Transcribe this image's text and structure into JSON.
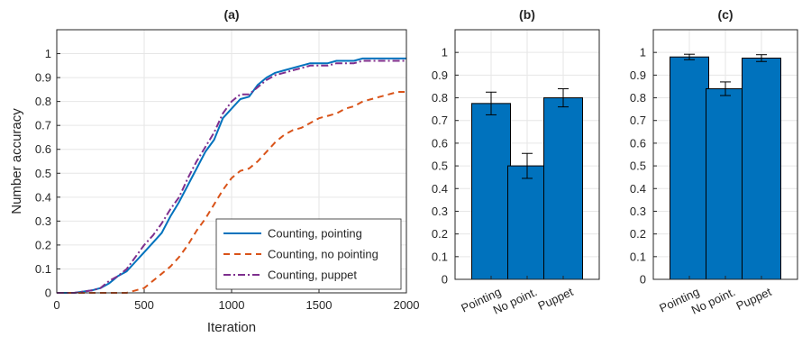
{
  "colors": {
    "pointing": "#0072BD",
    "no_pointing": "#D95319",
    "puppet": "#7E2F8E",
    "bar_fill": "#0072BD",
    "grid": "#e6e6e6",
    "axis": "#262626"
  },
  "chart_data": [
    {
      "id": "a",
      "type": "line",
      "title": "(a)",
      "xlabel": "Iteration",
      "ylabel": "Number accuracy",
      "xlim": [
        0,
        2000
      ],
      "ylim": [
        0,
        1.1
      ],
      "xticks": [
        0,
        500,
        1000,
        1500,
        2000
      ],
      "yticks": [
        0,
        0.1,
        0.2,
        0.3,
        0.4,
        0.5,
        0.6,
        0.7,
        0.8,
        0.9,
        1
      ],
      "ytick_labels": [
        "0",
        "0.1",
        "0.2",
        "0.3",
        "0.4",
        "0.5",
        "0.6",
        "0.7",
        "0.8",
        "0.9",
        "1"
      ],
      "grid": true,
      "legend_position": "bottom-right",
      "series": [
        {
          "name": "Counting, pointing",
          "style": "solid",
          "color": "#0072BD",
          "x": [
            0,
            100,
            200,
            250,
            300,
            350,
            400,
            450,
            500,
            550,
            600,
            650,
            700,
            750,
            800,
            850,
            900,
            950,
            1000,
            1050,
            1100,
            1150,
            1200,
            1250,
            1300,
            1350,
            1400,
            1450,
            1500,
            1550,
            1600,
            1650,
            1700,
            1750,
            1800,
            1850,
            1900,
            1950,
            2000
          ],
          "y": [
            0.0,
            0.0,
            0.01,
            0.02,
            0.04,
            0.07,
            0.09,
            0.13,
            0.17,
            0.21,
            0.25,
            0.32,
            0.38,
            0.45,
            0.52,
            0.59,
            0.64,
            0.73,
            0.77,
            0.81,
            0.82,
            0.87,
            0.9,
            0.92,
            0.93,
            0.94,
            0.95,
            0.96,
            0.96,
            0.96,
            0.97,
            0.97,
            0.97,
            0.98,
            0.98,
            0.98,
            0.98,
            0.98,
            0.98
          ]
        },
        {
          "name": "Counting, no pointing",
          "style": "dashed",
          "color": "#D95319",
          "x": [
            0,
            100,
            200,
            300,
            350,
            400,
            450,
            500,
            550,
            600,
            650,
            700,
            750,
            800,
            850,
            900,
            950,
            1000,
            1050,
            1100,
            1150,
            1200,
            1250,
            1300,
            1350,
            1400,
            1450,
            1500,
            1550,
            1600,
            1650,
            1700,
            1750,
            1800,
            1850,
            1900,
            1950,
            2000
          ],
          "y": [
            0.0,
            0.0,
            0.0,
            0.0,
            0.0,
            0.0,
            0.01,
            0.02,
            0.05,
            0.08,
            0.11,
            0.15,
            0.2,
            0.26,
            0.31,
            0.37,
            0.43,
            0.48,
            0.51,
            0.52,
            0.55,
            0.59,
            0.63,
            0.66,
            0.68,
            0.69,
            0.71,
            0.73,
            0.74,
            0.75,
            0.77,
            0.78,
            0.8,
            0.81,
            0.82,
            0.83,
            0.84,
            0.84
          ]
        },
        {
          "name": "Counting, puppet",
          "style": "dashdot",
          "color": "#7E2F8E",
          "x": [
            0,
            100,
            200,
            250,
            300,
            350,
            400,
            450,
            500,
            550,
            600,
            650,
            700,
            750,
            800,
            850,
            900,
            950,
            1000,
            1050,
            1100,
            1150,
            1200,
            1250,
            1300,
            1350,
            1400,
            1450,
            1500,
            1550,
            1600,
            1650,
            1700,
            1750,
            1800,
            1850,
            1900,
            1950,
            2000
          ],
          "y": [
            0.0,
            0.0,
            0.01,
            0.02,
            0.05,
            0.07,
            0.1,
            0.15,
            0.2,
            0.24,
            0.29,
            0.35,
            0.4,
            0.48,
            0.55,
            0.61,
            0.67,
            0.75,
            0.8,
            0.83,
            0.83,
            0.86,
            0.89,
            0.91,
            0.92,
            0.93,
            0.94,
            0.95,
            0.95,
            0.95,
            0.96,
            0.96,
            0.96,
            0.97,
            0.97,
            0.97,
            0.97,
            0.97,
            0.97
          ]
        }
      ]
    },
    {
      "id": "b",
      "type": "bar",
      "title": "(b)",
      "categories": [
        "Pointing",
        "No point.",
        "Puppet"
      ],
      "values": [
        0.775,
        0.5,
        0.8
      ],
      "errors": [
        0.05,
        0.055,
        0.04
      ],
      "ylim": [
        0,
        1.1
      ],
      "yticks": [
        0,
        0.1,
        0.2,
        0.3,
        0.4,
        0.5,
        0.6,
        0.7,
        0.8,
        0.9,
        1
      ],
      "ytick_labels": [
        "0",
        "0.1",
        "0.2",
        "0.3",
        "0.4",
        "0.5",
        "0.6",
        "0.7",
        "0.8",
        "0.9",
        "1"
      ],
      "grid": true
    },
    {
      "id": "c",
      "type": "bar",
      "title": "(c)",
      "categories": [
        "Pointing",
        "No point.",
        "Puppet"
      ],
      "values": [
        0.98,
        0.84,
        0.975
      ],
      "errors": [
        0.012,
        0.03,
        0.015
      ],
      "ylim": [
        0,
        1.1
      ],
      "yticks": [
        0,
        0.1,
        0.2,
        0.3,
        0.4,
        0.5,
        0.6,
        0.7,
        0.8,
        0.9,
        1
      ],
      "ytick_labels": [
        "0",
        "0.1",
        "0.2",
        "0.3",
        "0.4",
        "0.5",
        "0.6",
        "0.7",
        "0.8",
        "0.9",
        "1"
      ],
      "grid": true
    }
  ]
}
